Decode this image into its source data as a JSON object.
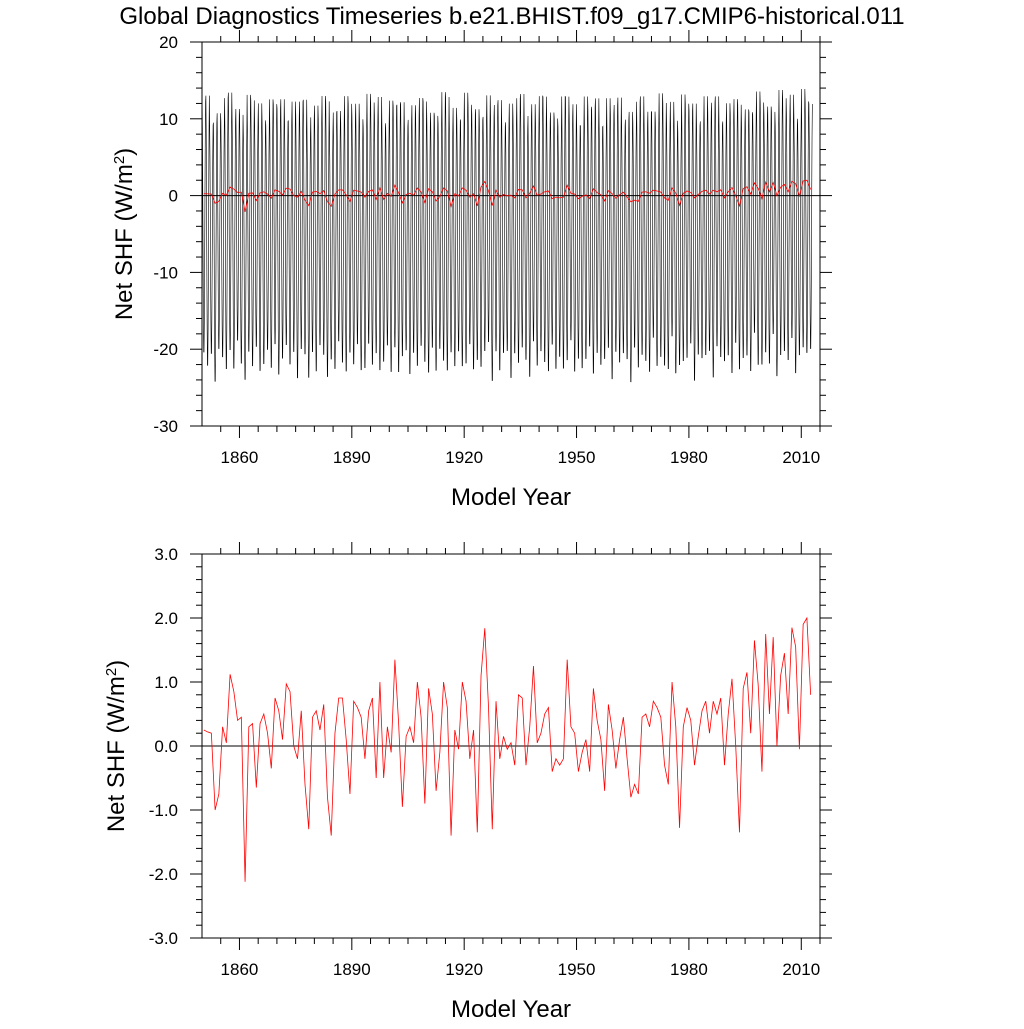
{
  "figure": {
    "title": "Global Diagnostics Timeseries b.e21.BHIST.f09_g17.CMIP6-historical.011"
  },
  "colors": {
    "monthly_line": "#000000",
    "annual_line": "#ff0000",
    "zero_line": "#000000",
    "background": "#ffffff"
  },
  "chart_data": [
    {
      "type": "line",
      "xlabel": "Model Year",
      "ylabel_main": "Net SHF (W/m",
      "ylabel_sup": "2",
      "ylabel_close": ")",
      "xlim": [
        1850,
        2015
      ],
      "ylim": [
        -30,
        20
      ],
      "xticks": [
        1860,
        1890,
        1920,
        1950,
        1980,
        2010
      ],
      "xtick_labels": [
        "1860",
        "1890",
        "1920",
        "1950",
        "1980",
        "2010"
      ],
      "yticks": [
        -30,
        -20,
        -10,
        0,
        10,
        20
      ],
      "ytick_labels": [
        "-30",
        "-20",
        "-10",
        "0",
        "10",
        "20"
      ],
      "zero_line": 0,
      "series": [
        {
          "kind": "monthly",
          "color": "#000000",
          "start_year": 1850,
          "annual_peak_approx": 11.5,
          "annual_trough_approx": -22,
          "note_values": "monthly seasonal cycle; yearly maxima ~9–16, minima ~-19 to -26"
        },
        {
          "kind": "annual",
          "color": "#ff0000",
          "ref": "annual_mean"
        }
      ]
    },
    {
      "type": "line",
      "xlabel": "Model Year",
      "ylabel_main": "Net SHF (W/m",
      "ylabel_sup": "2",
      "ylabel_close": ")",
      "xlim": [
        1850,
        2015
      ],
      "ylim": [
        -3,
        3
      ],
      "xticks": [
        1860,
        1890,
        1920,
        1950,
        1980,
        2010
      ],
      "xtick_labels": [
        "1860",
        "1890",
        "1920",
        "1950",
        "1980",
        "2010"
      ],
      "yticks": [
        -3,
        -2,
        -1,
        0,
        1,
        2,
        3
      ],
      "ytick_labels": [
        "-3.0",
        "-2.0",
        "-1.0",
        "0.0",
        "1.0",
        "2.0",
        "3.0"
      ],
      "zero_line": 0,
      "series": [
        {
          "kind": "annual",
          "color": "#ff0000",
          "ref": "annual_mean"
        }
      ]
    }
  ],
  "annual_mean": {
    "start_year": 1850.5,
    "values": [
      0.25,
      0.22,
      0.2,
      -1.0,
      -0.75,
      0.3,
      0.05,
      1.12,
      0.85,
      0.4,
      0.45,
      -2.12,
      0.3,
      0.35,
      -0.65,
      0.35,
      0.5,
      0.2,
      -0.35,
      0.75,
      0.55,
      0.1,
      0.97,
      0.85,
      0.0,
      -0.2,
      0.55,
      -0.6,
      -1.3,
      0.45,
      0.55,
      0.25,
      0.65,
      -0.8,
      -1.4,
      0.2,
      0.75,
      0.75,
      0.1,
      -0.75,
      0.7,
      0.6,
      0.45,
      -0.2,
      0.55,
      0.75,
      -0.5,
      1.0,
      -0.5,
      0.3,
      -0.1,
      1.35,
      0.35,
      -0.95,
      0.15,
      0.3,
      0.05,
      1.0,
      0.45,
      -0.9,
      0.9,
      0.5,
      -0.7,
      -0.1,
      1.0,
      0.6,
      -1.4,
      0.25,
      -0.05,
      1.0,
      0.7,
      -0.2,
      0.25,
      -1.35,
      1.1,
      1.84,
      0.6,
      -1.3,
      0.7,
      -0.2,
      0.15,
      -0.05,
      0.05,
      -0.3,
      0.8,
      0.75,
      -0.3,
      0.3,
      1.25,
      0.05,
      0.2,
      0.5,
      0.6,
      -0.4,
      -0.2,
      -0.3,
      -0.2,
      1.35,
      0.3,
      0.2,
      -0.4,
      -0.1,
      0.1,
      -0.4,
      0.9,
      0.4,
      0.1,
      -0.7,
      0.65,
      0.25,
      -0.35,
      0.1,
      0.45,
      -0.2,
      -0.8,
      -0.6,
      -0.75,
      0.45,
      0.5,
      0.3,
      0.7,
      0.6,
      0.45,
      -0.3,
      -0.6,
      1.0,
      0.3,
      -1.28,
      0.3,
      0.6,
      0.4,
      -0.3,
      0.15,
      0.55,
      0.7,
      0.2,
      0.7,
      0.5,
      0.75,
      -0.3,
      0.5,
      1.05,
      0.0,
      -1.35,
      0.9,
      1.15,
      0.2,
      1.65,
      0.95,
      -0.4,
      1.75,
      0.5,
      1.7,
      0.0,
      1.1,
      1.45,
      0.5,
      1.85,
      1.55,
      -0.05,
      1.9,
      2.0,
      0.8
    ]
  }
}
